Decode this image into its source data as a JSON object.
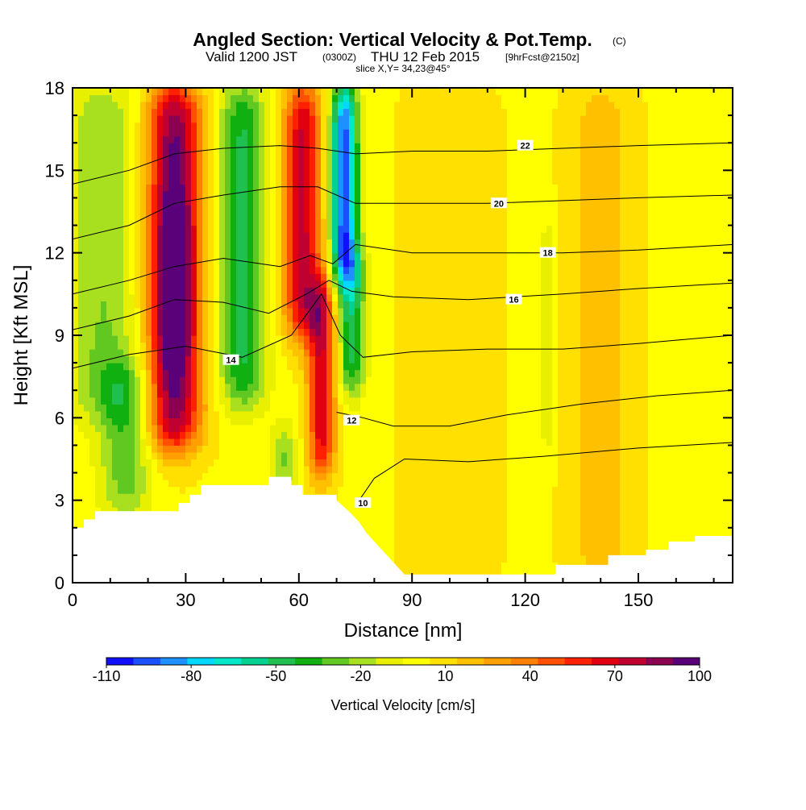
{
  "title": {
    "main": "Angled Section: Vertical Velocity & Pot.Temp.",
    "unit_tag": "(C)",
    "valid_prefix": "Valid 1200 JST",
    "utc": "(0300Z)",
    "date": "THU 12 Feb 2015",
    "forecast": "[9hrFcst@2150z]",
    "slice": "slice X,Y= 34,23@45°"
  },
  "chart_data": {
    "type": "heatmap",
    "xlabel": "Distance [nm]",
    "ylabel": "Height [Kft MSL]",
    "xlim": [
      0,
      175
    ],
    "ylim": [
      0,
      18
    ],
    "x_ticks": [
      "0",
      "30",
      "60",
      "90",
      "120",
      "150"
    ],
    "y_ticks": [
      "0",
      "3",
      "6",
      "9",
      "12",
      "15",
      "18"
    ],
    "colorbar": {
      "label": "Vertical Velocity [cm/s]",
      "tick_labels": [
        "-110",
        "-80",
        "-50",
        "-20",
        "10",
        "40",
        "70",
        "100"
      ],
      "levels": [
        -110,
        -100,
        -90,
        -80,
        -70,
        -60,
        -50,
        -40,
        -30,
        -20,
        -10,
        0,
        10,
        20,
        30,
        40,
        50,
        60,
        70,
        80,
        90,
        100
      ],
      "colors": [
        "#1010ff",
        "#1a50ff",
        "#1e90ff",
        "#00d8ff",
        "#00e8c8",
        "#00d090",
        "#20c050",
        "#10b010",
        "#60c820",
        "#a8e020",
        "#e8f000",
        "#ffff00",
        "#ffe000",
        "#ffc000",
        "#ffa000",
        "#ff8000",
        "#ff5000",
        "#ff2000",
        "#e00010",
        "#c00030",
        "#8c0050",
        "#5a0078"
      ]
    },
    "velocity_features": [
      {
        "x": 27,
        "sigma": 5,
        "amp": 95,
        "zmin": 5,
        "zmax": 18
      },
      {
        "x": 27,
        "sigma": 3,
        "amp": 35,
        "zmin": 8,
        "zmax": 14
      },
      {
        "x": 45,
        "sigma": 4.5,
        "amp": -50,
        "zmin": 6.5,
        "zmax": 18
      },
      {
        "x": 61,
        "sigma": 3.5,
        "amp": 75,
        "zmin": 9,
        "zmax": 18
      },
      {
        "x": 66,
        "sigma": 2.5,
        "amp": 70,
        "zmin": 4,
        "zmax": 11
      },
      {
        "x": 72,
        "sigma": 2.5,
        "amp": -105,
        "zmin": 11,
        "zmax": 18
      },
      {
        "x": 74,
        "sigma": 2.5,
        "amp": -55,
        "zmin": 7,
        "zmax": 12
      },
      {
        "x": 14,
        "sigma": 5,
        "amp": -35,
        "zmin": 2.5,
        "zmax": 8
      },
      {
        "x": 8,
        "sigma": 7,
        "amp": -28,
        "zmin": 6,
        "zmax": 18
      },
      {
        "x": 56,
        "sigma": 2.5,
        "amp": -35,
        "zmin": 3.5,
        "zmax": 5.5
      },
      {
        "x": 100,
        "sigma": 8,
        "amp": 12,
        "zmin": 0,
        "zmax": 18
      },
      {
        "x": 126,
        "sigma": 1.5,
        "amp": -20,
        "zmin": 5,
        "zmax": 13
      },
      {
        "x": 140,
        "sigma": 6,
        "amp": 18,
        "zmin": 0,
        "zmax": 18
      }
    ],
    "terrain": [
      [
        0,
        2
      ],
      [
        3,
        2
      ],
      [
        3,
        2.3
      ],
      [
        6,
        2.3
      ],
      [
        6,
        2.6
      ],
      [
        10,
        2.6
      ],
      [
        10,
        2.6
      ],
      [
        28,
        2.6
      ],
      [
        28,
        2.9
      ],
      [
        31,
        2.9
      ],
      [
        31,
        3.2
      ],
      [
        34,
        3.2
      ],
      [
        34,
        3.55
      ],
      [
        52,
        3.55
      ],
      [
        52,
        3.85
      ],
      [
        58,
        3.85
      ],
      [
        58,
        3.55
      ],
      [
        61,
        3.55
      ],
      [
        61,
        3.2
      ],
      [
        70,
        3.2
      ],
      [
        70,
        3.0
      ],
      [
        74,
        2.5
      ],
      [
        76,
        2.2
      ],
      [
        78,
        1.8
      ],
      [
        80,
        1.5
      ],
      [
        82,
        1.2
      ],
      [
        84,
        0.9
      ],
      [
        86,
        0.6
      ],
      [
        88,
        0.3
      ],
      [
        92,
        0.3
      ],
      [
        92,
        0.3
      ],
      [
        128,
        0.3
      ],
      [
        128,
        0.65
      ],
      [
        142,
        0.65
      ],
      [
        142,
        1.0
      ],
      [
        152,
        1.0
      ],
      [
        152,
        1.2
      ],
      [
        158,
        1.2
      ],
      [
        158,
        1.5
      ],
      [
        165,
        1.5
      ],
      [
        165,
        1.7
      ],
      [
        175,
        1.7
      ]
    ],
    "theta_contours": [
      {
        "value": 10,
        "label": "10",
        "points": [
          [
            76,
            3.0
          ],
          [
            80,
            3.8
          ],
          [
            88,
            4.5
          ],
          [
            105,
            4.4
          ],
          [
            125,
            4.6
          ],
          [
            150,
            4.9
          ],
          [
            175,
            5.1
          ]
        ],
        "label_at": [
          77,
          2.9
        ]
      },
      {
        "value": 12,
        "label": "12",
        "points": [
          [
            70,
            6.2
          ],
          [
            77,
            6.0
          ],
          [
            85,
            5.7
          ],
          [
            100,
            5.7
          ],
          [
            115,
            6.1
          ],
          [
            135,
            6.5
          ],
          [
            155,
            6.8
          ],
          [
            175,
            7.0
          ]
        ],
        "label_at": [
          74,
          5.9
        ]
      },
      {
        "value": 14,
        "label": "14",
        "points": [
          [
            0,
            7.8
          ],
          [
            15,
            8.3
          ],
          [
            30,
            8.6
          ],
          [
            45,
            8.2
          ],
          [
            58,
            9.0
          ],
          [
            66,
            10.5
          ],
          [
            71,
            9.0
          ],
          [
            77,
            8.2
          ],
          [
            90,
            8.4
          ],
          [
            110,
            8.5
          ],
          [
            130,
            8.5
          ],
          [
            150,
            8.7
          ],
          [
            175,
            9.0
          ]
        ],
        "label_at": [
          42,
          8.1
        ]
      },
      {
        "value": 16,
        "label": "16",
        "points": [
          [
            0,
            9.2
          ],
          [
            15,
            9.7
          ],
          [
            27,
            10.3
          ],
          [
            40,
            10.2
          ],
          [
            52,
            9.8
          ],
          [
            62,
            10.5
          ],
          [
            68,
            11.0
          ],
          [
            74,
            10.6
          ],
          [
            85,
            10.4
          ],
          [
            105,
            10.3
          ],
          [
            130,
            10.5
          ],
          [
            150,
            10.7
          ],
          [
            175,
            10.9
          ]
        ],
        "label_at": [
          117,
          10.3
        ]
      },
      {
        "value": 18,
        "label": "18",
        "points": [
          [
            0,
            10.5
          ],
          [
            15,
            11.0
          ],
          [
            27,
            11.5
          ],
          [
            40,
            11.8
          ],
          [
            55,
            11.5
          ],
          [
            63,
            11.9
          ],
          [
            69,
            11.6
          ],
          [
            75,
            12.3
          ],
          [
            90,
            12.0
          ],
          [
            110,
            12.0
          ],
          [
            130,
            12.0
          ],
          [
            150,
            12.1
          ],
          [
            175,
            12.3
          ]
        ],
        "label_at": [
          126,
          12.0
        ]
      },
      {
        "value": 20,
        "label": "20",
        "points": [
          [
            0,
            12.5
          ],
          [
            15,
            13.0
          ],
          [
            27,
            13.8
          ],
          [
            40,
            14.1
          ],
          [
            55,
            14.4
          ],
          [
            65,
            14.4
          ],
          [
            75,
            13.8
          ],
          [
            90,
            13.8
          ],
          [
            110,
            13.8
          ],
          [
            130,
            13.9
          ],
          [
            150,
            14.0
          ],
          [
            175,
            14.1
          ]
        ],
        "label_at": [
          113,
          13.8
        ]
      },
      {
        "value": 22,
        "label": "22",
        "points": [
          [
            0,
            14.5
          ],
          [
            15,
            15.0
          ],
          [
            27,
            15.6
          ],
          [
            40,
            15.8
          ],
          [
            55,
            15.9
          ],
          [
            65,
            15.8
          ],
          [
            75,
            15.6
          ],
          [
            90,
            15.7
          ],
          [
            110,
            15.7
          ],
          [
            130,
            15.8
          ],
          [
            150,
            15.9
          ],
          [
            175,
            16.0
          ]
        ],
        "label_at": [
          120,
          15.9
        ]
      }
    ]
  }
}
